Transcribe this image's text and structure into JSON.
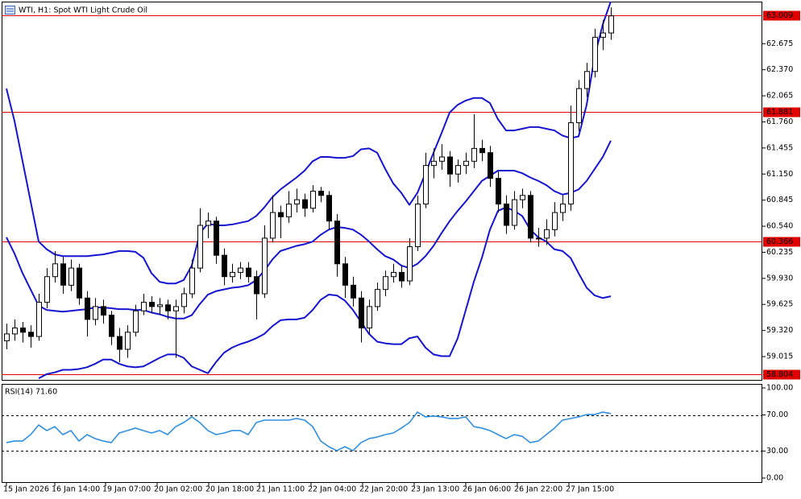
{
  "chart_data": [
    {
      "type": "candlestick",
      "title": "WTI, H1:  Spot WTI Light Crude Oil",
      "up_color": "#ffffff",
      "down_color": "#000000",
      "outline_color": "#000000",
      "xlim": [
        -0.6,
        93.8
      ],
      "ylim": [
        58.733,
        63.167
      ],
      "yticks": [
        62.675,
        {
          "value": 62.37,
          "label": "62.370"
        },
        62.065,
        {
          "value": 61.76,
          "label": "61.760"
        },
        61.455,
        {
          "value": 61.15,
          "label": "61.150"
        },
        60.845,
        {
          "value": 60.54,
          "label": "60.540"
        },
        60.235,
        {
          "value": 59.93,
          "label": "59.930"
        },
        59.625,
        {
          "value": 59.32,
          "label": "59.320"
        },
        59.015
      ],
      "levels": {
        "color": "#e00000",
        "values": [
          63.009,
          61.881,
          60.366,
          58.804
        ]
      },
      "candles": [
        [
          59.2,
          59.4,
          59.1,
          59.28
        ],
        [
          59.28,
          59.45,
          59.2,
          59.35
        ],
        [
          59.35,
          59.42,
          59.18,
          59.3
        ],
        [
          59.3,
          59.38,
          59.12,
          59.25
        ],
        [
          59.25,
          59.75,
          59.2,
          59.65
        ],
        [
          59.65,
          60.05,
          59.58,
          59.95
        ],
        [
          59.95,
          60.25,
          59.88,
          60.1
        ],
        [
          60.1,
          60.18,
          59.75,
          59.85
        ],
        [
          59.85,
          60.15,
          59.78,
          60.05
        ],
        [
          60.05,
          60.1,
          59.62,
          59.7
        ],
        [
          59.7,
          59.78,
          59.25,
          59.45
        ],
        [
          59.45,
          59.7,
          59.38,
          59.6
        ],
        [
          59.6,
          59.68,
          59.4,
          59.5
        ],
        [
          59.5,
          59.55,
          59.15,
          59.25
        ],
        [
          59.25,
          59.35,
          58.95,
          59.1
        ],
        [
          59.1,
          59.38,
          59.0,
          59.3
        ],
        [
          59.3,
          59.62,
          59.25,
          59.55
        ],
        [
          59.55,
          59.75,
          59.5,
          59.65
        ],
        [
          59.65,
          59.72,
          59.52,
          59.6
        ],
        [
          59.6,
          59.7,
          59.5,
          59.62
        ],
        [
          59.62,
          59.68,
          59.45,
          59.55
        ],
        [
          59.55,
          59.68,
          59.0,
          59.6
        ],
        [
          59.6,
          59.82,
          59.52,
          59.75
        ],
        [
          59.75,
          60.15,
          59.7,
          60.05
        ],
        [
          60.05,
          60.75,
          60.0,
          60.55
        ],
        [
          60.55,
          60.7,
          60.4,
          60.6
        ],
        [
          60.6,
          60.65,
          60.1,
          60.2
        ],
        [
          60.2,
          60.28,
          59.85,
          59.95
        ],
        [
          59.95,
          60.1,
          59.88,
          60.0
        ],
        [
          60.0,
          60.12,
          59.92,
          60.05
        ],
        [
          60.05,
          60.12,
          59.88,
          59.95
        ],
        [
          59.95,
          60.02,
          59.45,
          59.75
        ],
        [
          59.75,
          60.55,
          59.7,
          60.4
        ],
        [
          60.4,
          60.9,
          60.35,
          60.7
        ],
        [
          60.7,
          60.78,
          60.4,
          60.65
        ],
        [
          60.65,
          60.95,
          60.58,
          60.8
        ],
        [
          60.8,
          60.98,
          60.7,
          60.85
        ],
        [
          60.85,
          60.92,
          60.65,
          60.75
        ],
        [
          60.75,
          61.02,
          60.7,
          60.95
        ],
        [
          60.95,
          61.0,
          60.82,
          60.9
        ],
        [
          60.9,
          60.95,
          60.5,
          60.6
        ],
        [
          60.6,
          60.68,
          59.95,
          60.1
        ],
        [
          60.1,
          60.18,
          59.7,
          59.85
        ],
        [
          59.85,
          59.95,
          59.6,
          59.7
        ],
        [
          59.7,
          59.78,
          59.18,
          59.35
        ],
        [
          59.35,
          59.68,
          59.28,
          59.6
        ],
        [
          59.6,
          59.88,
          59.55,
          59.8
        ],
        [
          59.8,
          60.02,
          59.72,
          59.95
        ],
        [
          59.95,
          60.1,
          59.88,
          60.0
        ],
        [
          60.0,
          60.08,
          59.82,
          59.9
        ],
        [
          59.9,
          60.4,
          59.85,
          60.3
        ],
        [
          60.3,
          60.9,
          60.25,
          60.8
        ],
        [
          60.8,
          61.4,
          60.75,
          61.25
        ],
        [
          61.25,
          61.45,
          61.1,
          61.3
        ],
        [
          61.3,
          61.5,
          61.2,
          61.35
        ],
        [
          61.35,
          61.42,
          61.0,
          61.15
        ],
        [
          61.15,
          61.32,
          61.05,
          61.25
        ],
        [
          61.25,
          61.4,
          61.15,
          61.3
        ],
        [
          61.3,
          61.85,
          61.22,
          61.45
        ],
        [
          61.45,
          61.55,
          61.3,
          61.4
        ],
        [
          61.4,
          61.48,
          61.0,
          61.1
        ],
        [
          61.1,
          61.18,
          60.7,
          60.8
        ],
        [
          60.8,
          60.9,
          60.45,
          60.55
        ],
        [
          60.55,
          60.95,
          60.5,
          60.85
        ],
        [
          60.85,
          60.98,
          60.75,
          60.9
        ],
        [
          60.9,
          60.95,
          60.35,
          60.4
        ],
        [
          60.4,
          60.52,
          60.3,
          60.4
        ],
        [
          60.4,
          60.62,
          60.32,
          60.5
        ],
        [
          60.5,
          60.82,
          60.42,
          60.7
        ],
        [
          60.7,
          60.9,
          60.6,
          60.8
        ],
        [
          60.8,
          61.95,
          60.72,
          61.75
        ],
        [
          61.75,
          62.25,
          61.65,
          62.15
        ],
        [
          62.15,
          62.45,
          62.05,
          62.35
        ],
        [
          62.35,
          62.85,
          62.28,
          62.75
        ],
        [
          62.75,
          62.95,
          62.6,
          62.8
        ],
        [
          62.8,
          63.1,
          62.72,
          63.0
        ]
      ],
      "bands": [
        {
          "color": "#1414d2",
          "values": [
            62.15,
            61.77,
            61.3,
            60.83,
            60.36,
            60.27,
            60.21,
            60.19,
            60.19,
            60.19,
            60.19,
            60.2,
            60.21,
            60.23,
            60.25,
            60.25,
            60.24,
            60.17,
            59.99,
            59.89,
            59.87,
            59.87,
            59.91,
            60.08,
            60.46,
            60.57,
            60.55,
            60.55,
            60.56,
            60.58,
            60.6,
            60.66,
            60.76,
            60.88,
            60.97,
            61.04,
            61.11,
            61.19,
            61.3,
            61.35,
            61.35,
            61.34,
            61.34,
            61.36,
            61.44,
            61.45,
            61.4,
            61.21,
            61.04,
            60.93,
            60.79,
            60.93,
            61.16,
            61.4,
            61.63,
            61.87,
            61.96,
            62.01,
            62.04,
            62.04,
            61.98,
            61.79,
            61.66,
            61.66,
            61.68,
            61.7,
            61.7,
            61.68,
            61.66,
            61.6,
            61.57,
            61.59,
            61.96,
            62.53,
            62.9,
            63.17
          ]
        },
        {
          "color": "#1414d2",
          "values": [
            60.41,
            60.22,
            59.99,
            59.8,
            59.61,
            59.56,
            59.55,
            59.54,
            59.55,
            59.56,
            59.57,
            59.59,
            59.59,
            59.58,
            59.57,
            59.57,
            59.56,
            59.56,
            59.53,
            59.51,
            59.48,
            59.46,
            59.46,
            59.5,
            59.63,
            59.74,
            59.78,
            59.8,
            59.82,
            59.83,
            59.85,
            59.91,
            60.02,
            60.15,
            60.25,
            60.28,
            60.31,
            60.33,
            60.36,
            60.44,
            60.5,
            60.53,
            60.52,
            60.5,
            60.44,
            60.36,
            60.27,
            60.19,
            60.15,
            60.08,
            60.05,
            60.1,
            60.19,
            60.31,
            60.46,
            60.6,
            60.72,
            60.83,
            60.95,
            61.07,
            61.13,
            61.19,
            61.19,
            61.19,
            61.16,
            61.11,
            61.07,
            61.02,
            60.95,
            60.91,
            60.93,
            60.97,
            61.07,
            61.21,
            61.35,
            61.54
          ]
        },
        {
          "color": "#1414d2",
          "values": [
            null,
            null,
            null,
            null,
            58.76,
            58.81,
            58.83,
            58.86,
            58.86,
            58.87,
            58.89,
            58.93,
            58.98,
            58.98,
            58.93,
            58.9,
            58.89,
            58.9,
            58.95,
            59.0,
            59.04,
            59.04,
            59.0,
            58.9,
            58.86,
            58.82,
            58.95,
            59.06,
            59.12,
            59.16,
            59.19,
            59.23,
            59.28,
            59.37,
            59.44,
            59.45,
            59.45,
            59.47,
            59.56,
            59.68,
            59.74,
            59.73,
            59.67,
            59.56,
            59.42,
            59.28,
            59.19,
            59.17,
            59.16,
            59.16,
            59.23,
            59.25,
            59.12,
            59.04,
            59.02,
            59.02,
            59.23,
            59.56,
            59.89,
            60.17,
            60.5,
            60.72,
            60.76,
            60.72,
            60.66,
            60.5,
            60.41,
            60.36,
            60.27,
            60.25,
            60.17,
            59.99,
            59.82,
            59.73,
            59.7,
            59.72
          ]
        }
      ]
    },
    {
      "type": "line",
      "title": "RSI(14) 71.60",
      "color": "#2f8fe0",
      "xlim": [
        -0.6,
        93.8
      ],
      "ylim": [
        -5.4,
        104.5
      ],
      "yticks": [
        {
          "value": 100,
          "label": "100.00"
        },
        {
          "value": 70,
          "label": "70.00"
        },
        {
          "value": 30,
          "label": "30.00"
        },
        {
          "value": 0,
          "label": "0.00"
        }
      ],
      "levels": [
        70,
        30
      ],
      "xticks": [
        {
          "value": 0,
          "label": "15 Jan 2026"
        },
        {
          "value": 6,
          "label": "16 Jan 14:00"
        },
        {
          "value": 12.3,
          "label": "19 Jan 07:00"
        },
        {
          "value": 18.7,
          "label": "20 Jan 02:00"
        },
        {
          "value": 25.1,
          "label": "20 Jan 18:00"
        },
        {
          "value": 31.4,
          "label": "21 Jan 11:00"
        },
        {
          "value": 37.8,
          "label": "22 Jan 04:00"
        },
        {
          "value": 44.2,
          "label": "22 Jan 20:00"
        },
        {
          "value": 50.6,
          "label": "23 Jan 13:00"
        },
        {
          "value": 57,
          "label": "26 Jan 06:00"
        },
        {
          "value": 63.4,
          "label": "26 Jan 22:00"
        },
        {
          "value": 69.8,
          "label": "27 Jan 15:00"
        }
      ],
      "values": [
        39.3,
        41.1,
        41.1,
        48.2,
        58.9,
        52.7,
        57.1,
        48.2,
        52.7,
        41.1,
        48.2,
        43.8,
        41.1,
        39.3,
        50.0,
        52.7,
        55.4,
        52.7,
        50.0,
        52.7,
        48.2,
        57.1,
        61.6,
        67.9,
        61.6,
        52.7,
        48.2,
        50.0,
        52.7,
        52.7,
        48.2,
        61.6,
        64.3,
        64.3,
        64.3,
        64.3,
        66.1,
        64.3,
        57.1,
        41.1,
        34.8,
        30.4,
        34.8,
        30.4,
        39.3,
        43.8,
        45.5,
        48.2,
        50.0,
        55.4,
        61.6,
        73.2,
        67.9,
        68.8,
        67.9,
        66.1,
        66.1,
        67.9,
        57.1,
        55.4,
        52.7,
        48.2,
        43.8,
        48.2,
        46.4,
        39.3,
        41.1,
        48.2,
        55.4,
        64.3,
        66.1,
        67.9,
        70.5,
        70.5,
        73.2,
        71.6
      ]
    }
  ]
}
